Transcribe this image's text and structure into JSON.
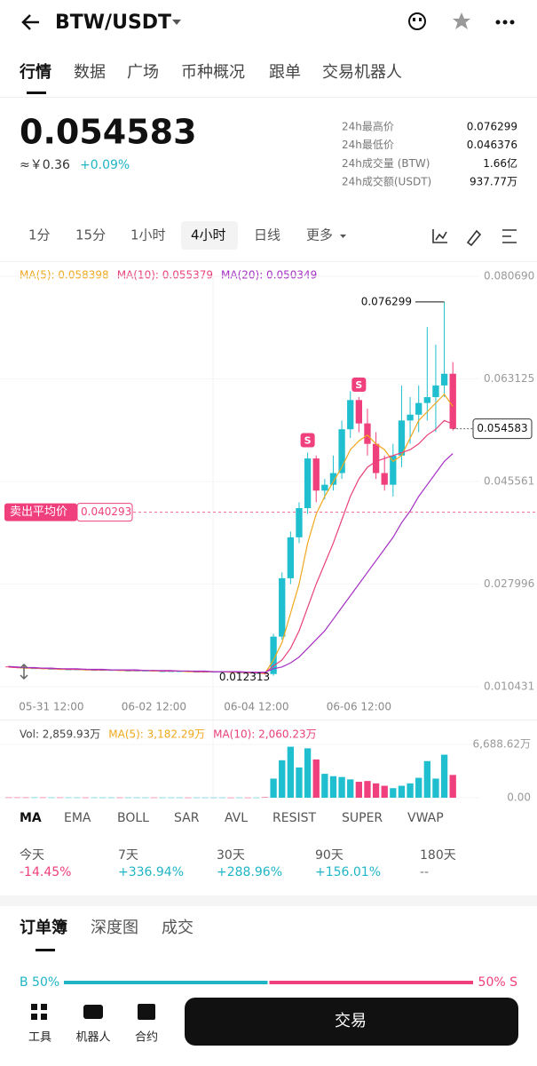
{
  "header": {
    "pair": "BTW/USDT"
  },
  "tabs": [
    "行情",
    "数据",
    "广场",
    "币种概况",
    "跟单",
    "交易机器人"
  ],
  "price": {
    "last": "0.054583",
    "cny": "≈￥0.36",
    "change": "+0.09%"
  },
  "stats": [
    {
      "label": "24h最高价",
      "value": "0.076299"
    },
    {
      "label": "24h最低价",
      "value": "0.046376"
    },
    {
      "label": "24h成交量 (BTW)",
      "value": "1.66亿"
    },
    {
      "label": "24h成交额(USDT)",
      "value": "937.77万"
    }
  ],
  "intervals": [
    "1分",
    "15分",
    "1小时",
    "4小时",
    "日线",
    "更多"
  ],
  "chart_data": {
    "type": "candlestick",
    "ma_legend": [
      {
        "text": "MA(5): 0.058398",
        "color": "#f0a81c"
      },
      {
        "text": "MA(10): 0.055379",
        "color": "#e8407a"
      },
      {
        "text": "MA(20): 0.050349",
        "color": "#a52fc4"
      }
    ],
    "up_color": "#1fbfcf",
    "down_color": "#ef3f7c",
    "categories": [
      null,
      null,
      null,
      null,
      null,
      "05-31 12:00",
      null,
      null,
      null,
      null,
      null,
      null,
      null,
      null,
      null,
      null,
      null,
      "06-02 12:00",
      null,
      null,
      null,
      null,
      null,
      null,
      null,
      null,
      null,
      null,
      null,
      "06-04 12:00",
      null,
      null,
      null,
      null,
      null,
      null,
      null,
      null,
      null,
      null,
      null,
      "06-06 12:00",
      null,
      null,
      null,
      null,
      null,
      null,
      null,
      null,
      null,
      null,
      null
    ],
    "open": [
      0.0139,
      0.0138,
      0.0137,
      0.0136,
      0.0136,
      0.0135,
      0.0135,
      0.0134,
      0.0134,
      0.0134,
      0.0133,
      0.0133,
      0.0133,
      0.0133,
      0.0132,
      0.0132,
      0.0132,
      0.0132,
      0.0131,
      0.0131,
      0.0131,
      0.0131,
      0.013,
      0.013,
      0.013,
      0.013,
      0.013,
      0.0129,
      0.0129,
      0.0128,
      0.0128,
      0.0126,
      0.019,
      0.029,
      0.036,
      0.041,
      0.0495,
      0.044,
      0.045,
      0.047,
      0.0545,
      0.0595,
      0.0555,
      0.052,
      0.047,
      0.045,
      0.05,
      0.056,
      0.057,
      0.059,
      0.06,
      0.062,
      0.064
    ],
    "high": [
      0.014,
      0.0139,
      0.0138,
      0.0137,
      0.0137,
      0.0136,
      0.0136,
      0.0135,
      0.0135,
      0.0135,
      0.0134,
      0.0134,
      0.0134,
      0.0134,
      0.0133,
      0.0133,
      0.0133,
      0.0133,
      0.0132,
      0.0132,
      0.0132,
      0.0132,
      0.0131,
      0.0131,
      0.0131,
      0.0131,
      0.0131,
      0.013,
      0.013,
      0.0129,
      0.0129,
      0.0195,
      0.03,
      0.037,
      0.042,
      0.0505,
      0.05,
      0.046,
      0.05,
      0.056,
      0.061,
      0.06,
      0.058,
      0.054,
      0.05,
      0.052,
      0.062,
      0.06,
      0.062,
      0.072,
      0.069,
      0.076299,
      0.066
    ],
    "low": [
      0.0137,
      0.0136,
      0.0135,
      0.0135,
      0.0134,
      0.0134,
      0.0133,
      0.0133,
      0.0133,
      0.0132,
      0.0132,
      0.0132,
      0.0132,
      0.0131,
      0.0131,
      0.0131,
      0.0131,
      0.013,
      0.013,
      0.013,
      0.013,
      0.0129,
      0.0129,
      0.0129,
      0.0129,
      0.0129,
      0.0128,
      0.0128,
      0.0127,
      0.0127,
      0.0125,
      0.012313,
      0.0185,
      0.028,
      0.035,
      0.04,
      0.042,
      0.0425,
      0.044,
      0.046,
      0.053,
      0.054,
      0.05,
      0.046,
      0.044,
      0.043,
      0.048,
      0.052,
      0.054,
      0.056,
      0.054,
      0.06,
      0.0543
    ],
    "close": [
      0.0138,
      0.0137,
      0.0136,
      0.0136,
      0.0135,
      0.0135,
      0.0134,
      0.0134,
      0.0134,
      0.0133,
      0.0133,
      0.0133,
      0.0133,
      0.0132,
      0.0132,
      0.0132,
      0.0132,
      0.0131,
      0.0131,
      0.0131,
      0.0131,
      0.013,
      0.013,
      0.013,
      0.013,
      0.013,
      0.0129,
      0.0129,
      0.0128,
      0.0128,
      0.0126,
      0.019,
      0.029,
      0.036,
      0.041,
      0.0495,
      0.044,
      0.045,
      0.047,
      0.0545,
      0.0595,
      0.0555,
      0.052,
      0.047,
      0.045,
      0.05,
      0.056,
      0.057,
      0.059,
      0.06,
      0.062,
      0.064,
      0.054583
    ],
    "ma": [
      {
        "name": "MA(5)",
        "color": "#f0a81c",
        "values": [
          0.0138,
          0.0137,
          0.0136,
          0.0136,
          0.0135,
          0.0135,
          0.0134,
          0.0134,
          0.0134,
          0.0133,
          0.0133,
          0.0133,
          0.0133,
          0.0132,
          0.0132,
          0.0132,
          0.0132,
          0.0131,
          0.0131,
          0.0131,
          0.0131,
          0.013,
          0.013,
          0.013,
          0.013,
          0.013,
          0.0129,
          0.0129,
          0.0128,
          0.0128,
          0.0127,
          0.015,
          0.018,
          0.023,
          0.028,
          0.035,
          0.04,
          0.043,
          0.0455,
          0.048,
          0.051,
          0.0525,
          0.0535,
          0.052,
          0.051,
          0.049,
          0.05,
          0.053,
          0.056,
          0.0575,
          0.059,
          0.0605,
          0.058398
        ]
      },
      {
        "name": "MA(10)",
        "color": "#e8407a",
        "values": [
          0.0138,
          0.0137,
          0.0137,
          0.0136,
          0.0136,
          0.0135,
          0.0135,
          0.0134,
          0.0134,
          0.0134,
          0.0133,
          0.0133,
          0.0133,
          0.0133,
          0.0132,
          0.0132,
          0.0132,
          0.0132,
          0.0131,
          0.0131,
          0.0131,
          0.0131,
          0.013,
          0.013,
          0.013,
          0.013,
          0.013,
          0.0129,
          0.0129,
          0.0128,
          0.0128,
          0.014,
          0.015,
          0.017,
          0.02,
          0.024,
          0.028,
          0.0315,
          0.035,
          0.039,
          0.043,
          0.046,
          0.048,
          0.049,
          0.0495,
          0.05,
          0.0505,
          0.051,
          0.052,
          0.0535,
          0.0545,
          0.056,
          0.055379
        ]
      },
      {
        "name": "MA(20)",
        "color": "#a52fc4",
        "values": [
          0.0139,
          0.0138,
          0.0137,
          0.0137,
          0.0136,
          0.0136,
          0.0135,
          0.0135,
          0.0135,
          0.0134,
          0.0134,
          0.0134,
          0.0133,
          0.0133,
          0.0133,
          0.0133,
          0.0132,
          0.0132,
          0.0132,
          0.0132,
          0.0131,
          0.0131,
          0.0131,
          0.0131,
          0.013,
          0.013,
          0.013,
          0.013,
          0.0129,
          0.0129,
          0.0129,
          0.0135,
          0.0138,
          0.0145,
          0.0155,
          0.017,
          0.0185,
          0.02,
          0.022,
          0.024,
          0.026,
          0.028,
          0.03,
          0.032,
          0.034,
          0.036,
          0.0385,
          0.0405,
          0.043,
          0.045,
          0.047,
          0.049,
          0.050349
        ]
      }
    ],
    "signals": [
      null,
      null,
      null,
      null,
      null,
      null,
      null,
      null,
      null,
      null,
      null,
      null,
      null,
      null,
      null,
      null,
      null,
      null,
      null,
      null,
      null,
      null,
      null,
      null,
      null,
      null,
      null,
      null,
      null,
      null,
      null,
      null,
      null,
      null,
      null,
      "S",
      null,
      null,
      null,
      null,
      null,
      "S",
      null,
      null,
      null,
      null,
      null,
      null,
      null,
      null,
      null,
      null,
      null
    ],
    "avg_sell": {
      "label": "卖出平均价",
      "value": 0.040293
    },
    "ylim": [
      0.010431,
      0.08069
    ],
    "yticks": [
      {
        "value": 0.08069,
        "label": "0.080690"
      },
      0.063125,
      0.045561,
      0.027996,
      0.010431
    ],
    "volume": {
      "legend": [
        {
          "text": "Vol: 2,859.93万",
          "color": "#444444"
        },
        {
          "text": "MA(5): 3,182.29万",
          "color": "#f0a81c"
        },
        {
          "text": "MA(10): 2,060.23万",
          "color": "#e8407a"
        }
      ],
      "values": [
        40,
        38,
        36,
        35,
        34,
        33,
        33,
        32,
        31,
        30,
        30,
        29,
        29,
        28,
        28,
        28,
        27,
        27,
        27,
        26,
        26,
        26,
        25,
        25,
        25,
        25,
        24,
        24,
        24,
        24,
        60,
        2400,
        4700,
        6400,
        3800,
        6200,
        4800,
        3000,
        2700,
        2600,
        2300,
        2000,
        2100,
        1800,
        1500,
        1200,
        1500,
        1800,
        2500,
        4600,
        2400,
        5400,
        2859.93
      ],
      "ylim": [
        0,
        6688.62
      ],
      "yticks": [
        {
          "value": 0,
          "label": "0.00"
        },
        {
          "value": 6688.62,
          "label": "6,688.62万"
        }
      ]
    }
  },
  "indicators": [
    "MA",
    "EMA",
    "BOLL",
    "SAR",
    "AVL",
    "RESIST",
    "SUPER",
    "VWAP"
  ],
  "performance": [
    {
      "label": "今天",
      "value": "-14.45%"
    },
    {
      "label": "7天",
      "value": "+336.94%"
    },
    {
      "label": "30天",
      "value": "+288.96%"
    },
    {
      "label": "90天",
      "value": "+156.01%"
    },
    {
      "label": "180天",
      "value": "--"
    }
  ],
  "book_tabs": [
    "订单簿",
    "深度图",
    "成交"
  ],
  "ratio": {
    "buy": 50,
    "sell": 50,
    "buy_label": "B 50%",
    "sell_label": "50% S"
  },
  "nav": [
    "工具",
    "机器人",
    "合约"
  ],
  "trade_button": "交易"
}
